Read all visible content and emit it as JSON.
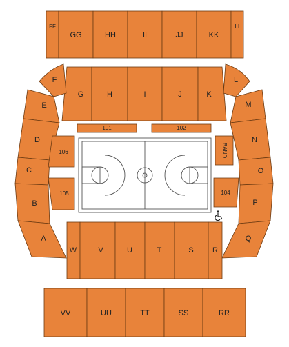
{
  "diagram": {
    "colors": {
      "section_fill": "#E8833A",
      "section_stroke": "#6B3A12",
      "court_fill": "#ffffff",
      "court_line": "#555555",
      "label": "#222222"
    },
    "sections": {
      "FF": "FF",
      "GG": "GG",
      "HH": "HH",
      "II": "II",
      "JJ": "JJ",
      "KK": "KK",
      "LL": "LL",
      "F": "F",
      "G": "G",
      "H": "H",
      "I": "I",
      "J": "J",
      "K": "K",
      "L": "L",
      "E": "E",
      "M": "M",
      "D": "D",
      "N": "N",
      "C": "C",
      "O": "O",
      "B": "B",
      "P": "P",
      "A": "A",
      "Q": "Q",
      "101": "101",
      "102": "102",
      "106": "106",
      "105": "105",
      "104": "104",
      "BAND": "BAND",
      "W": "W",
      "V": "V",
      "U": "U",
      "T": "T",
      "S": "S",
      "R": "R",
      "VV": "VV",
      "UU": "UU",
      "TT": "TT",
      "SS": "SS",
      "RR": "RR"
    },
    "icons": {
      "accessible": "wheelchair-icon"
    }
  }
}
